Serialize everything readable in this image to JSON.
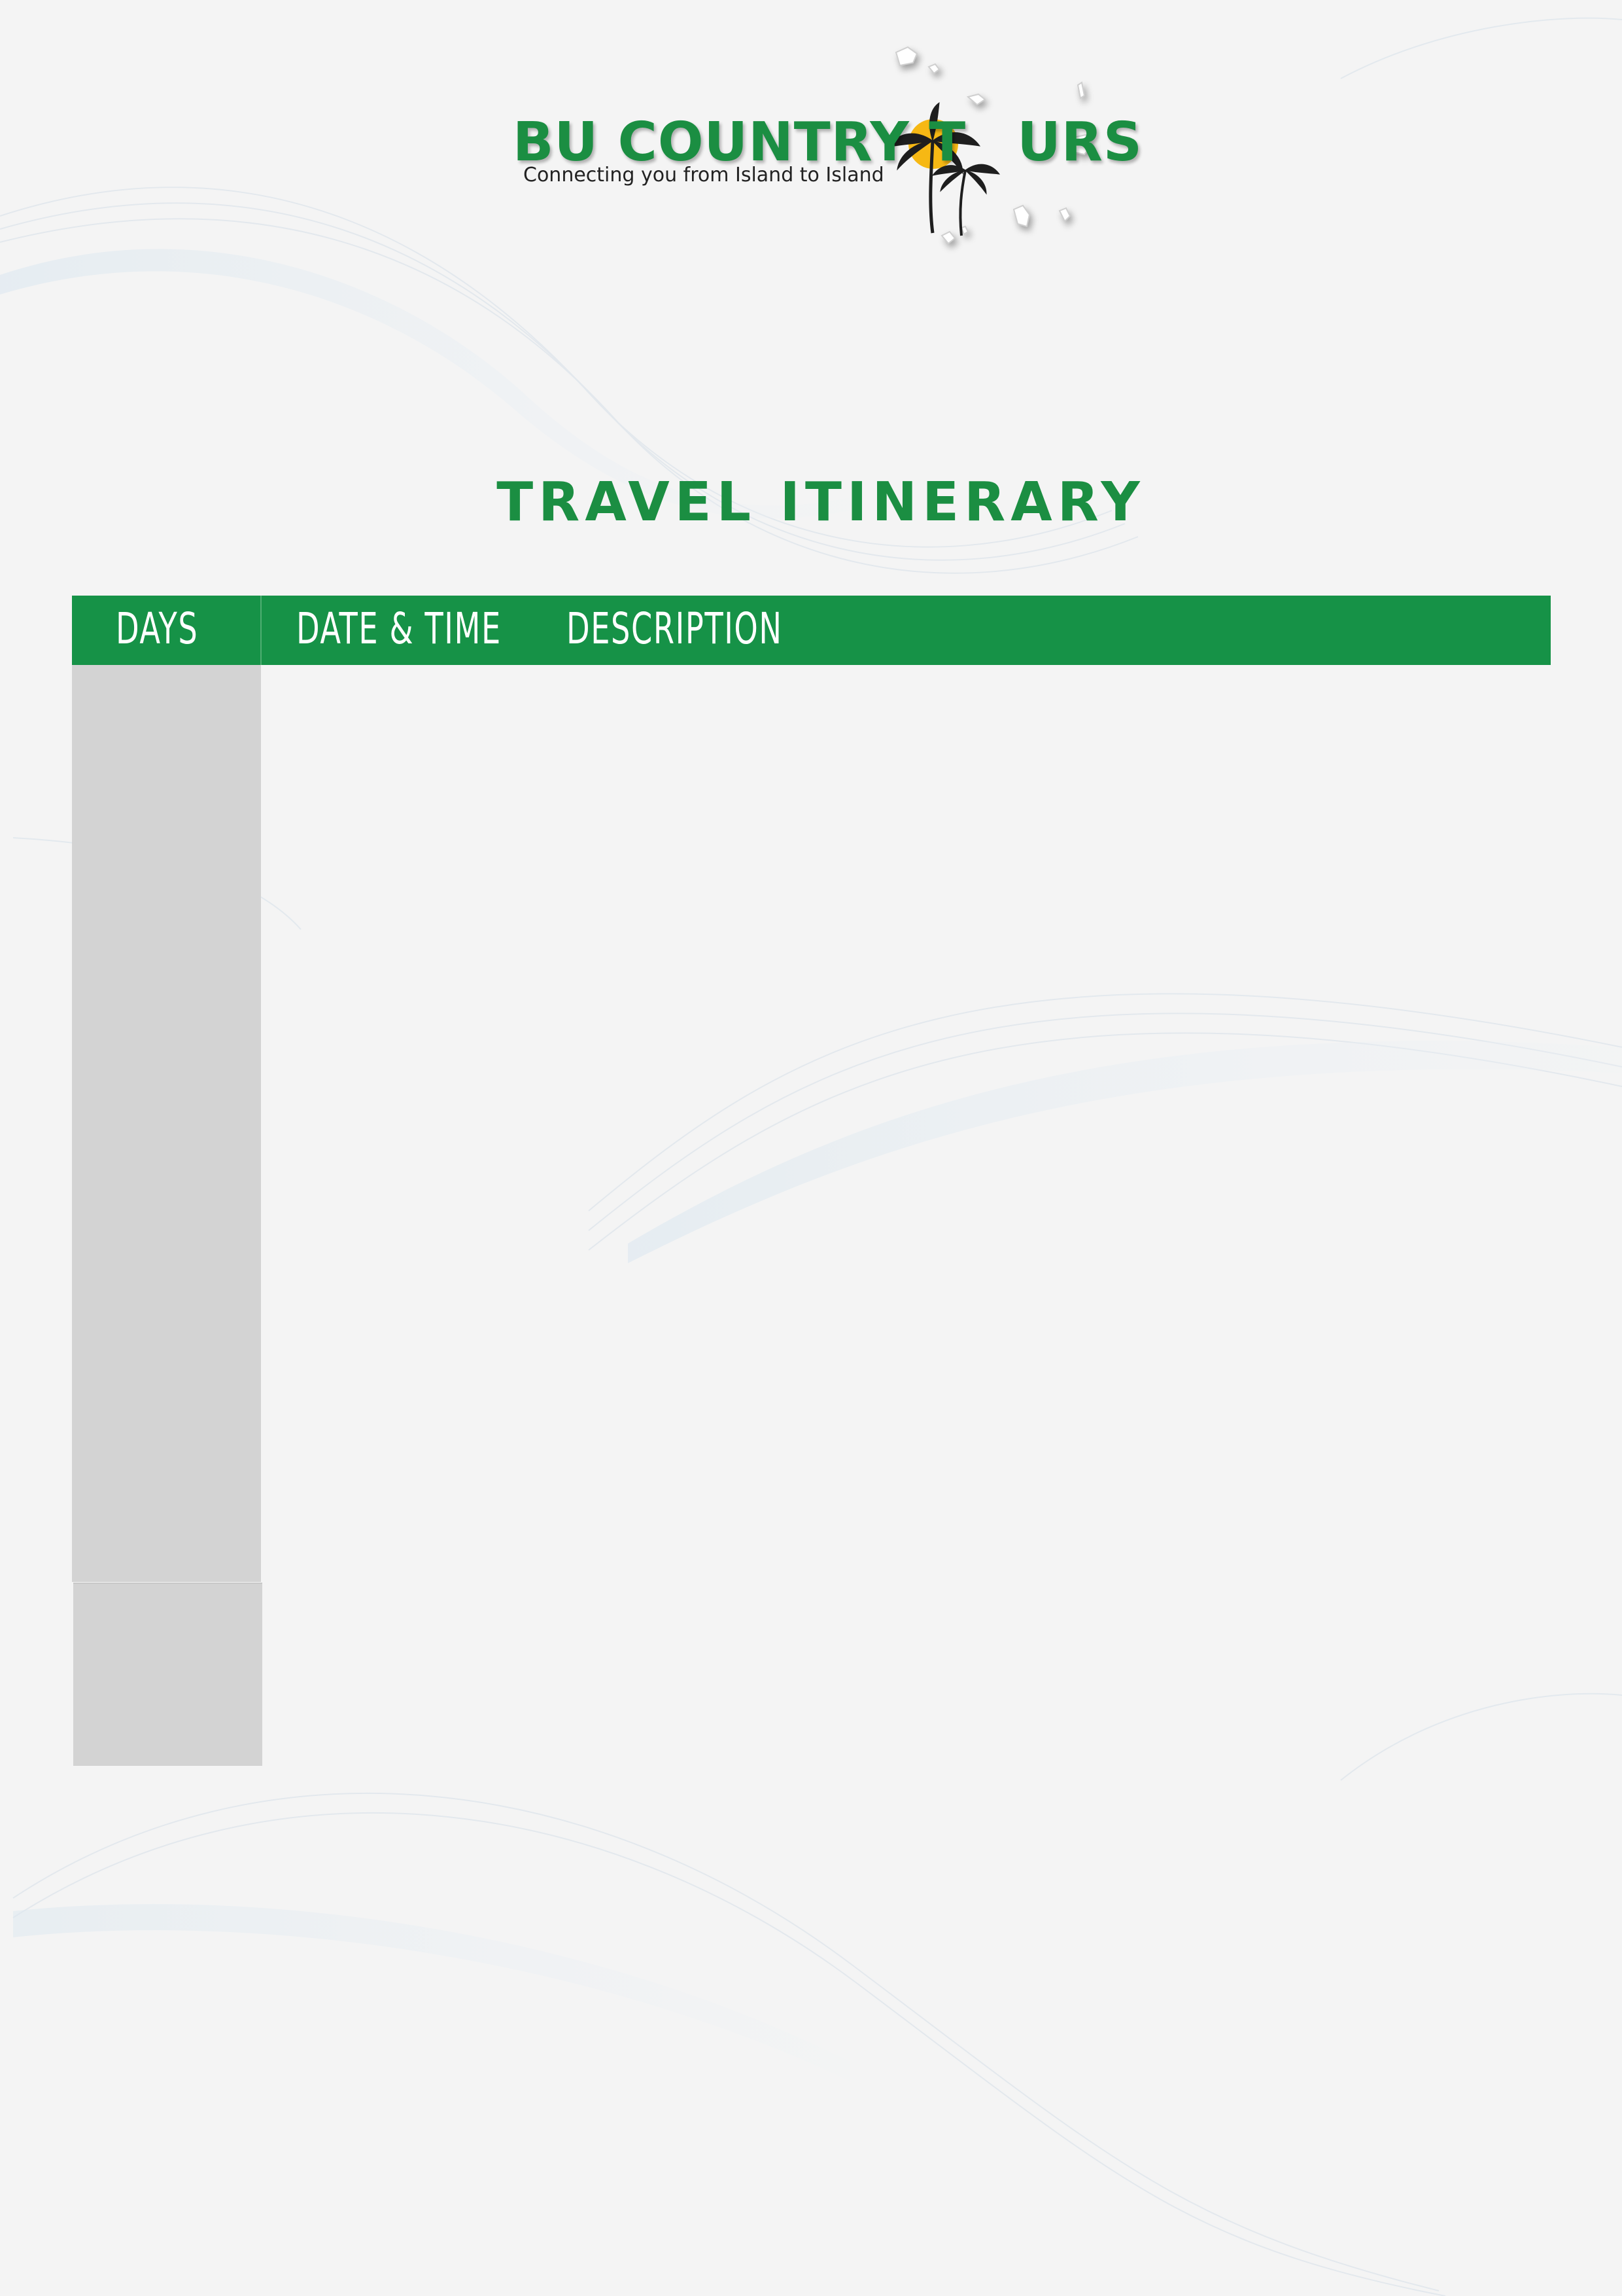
{
  "brand": {
    "name_part1": "BU COUNTRY T",
    "name_part2": "URS",
    "tagline": "Connecting you from Island to Island",
    "logo_icon": "palm-tree-sun-icon",
    "islands_icon": "island-map-icon"
  },
  "document": {
    "title": "TRAVEL ITINERARY"
  },
  "table": {
    "columns": [
      "DAYS",
      "DATE & TIME",
      "DESCRIPTION"
    ]
  },
  "colors": {
    "brand_green": "#1b8e42",
    "header_green": "#169247",
    "days_column": "#d3d3d3",
    "sun": "#f6b814",
    "background": "#f4f4f4"
  }
}
